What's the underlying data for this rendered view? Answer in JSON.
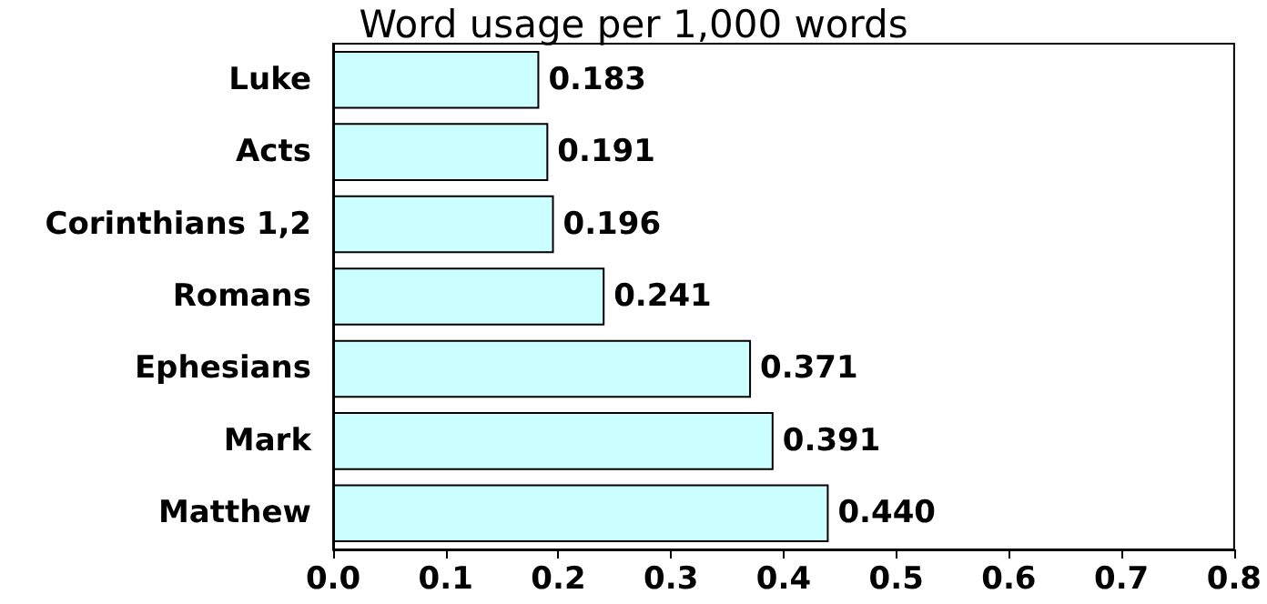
{
  "chart_data": {
    "type": "bar",
    "orientation": "horizontal",
    "title": "Word usage per 1,000 words",
    "categories": [
      "Luke",
      "Acts",
      "Corinthians 1,2",
      "Romans",
      "Ephesians",
      "Mark",
      "Matthew"
    ],
    "values": [
      0.183,
      0.191,
      0.196,
      0.241,
      0.371,
      0.391,
      0.44
    ],
    "value_labels": [
      "0.183",
      "0.191",
      "0.196",
      "0.241",
      "0.371",
      "0.391",
      "0.440"
    ],
    "color": "#ccffff",
    "xlim": [
      0,
      0.8
    ],
    "xticks": [
      {
        "value": 0,
        "label": "0.0"
      },
      {
        "value": 0.1,
        "label": "0.1"
      },
      {
        "value": 0.2,
        "label": "0.2"
      },
      {
        "value": 0.3,
        "label": "0.3"
      },
      {
        "value": 0.4,
        "label": "0.4"
      },
      {
        "value": 0.5,
        "label": "0.5"
      },
      {
        "value": 0.6,
        "label": "0.6"
      },
      {
        "value": 0.7,
        "label": "0.7"
      },
      {
        "value": 0.8,
        "label": "0.8"
      }
    ]
  }
}
